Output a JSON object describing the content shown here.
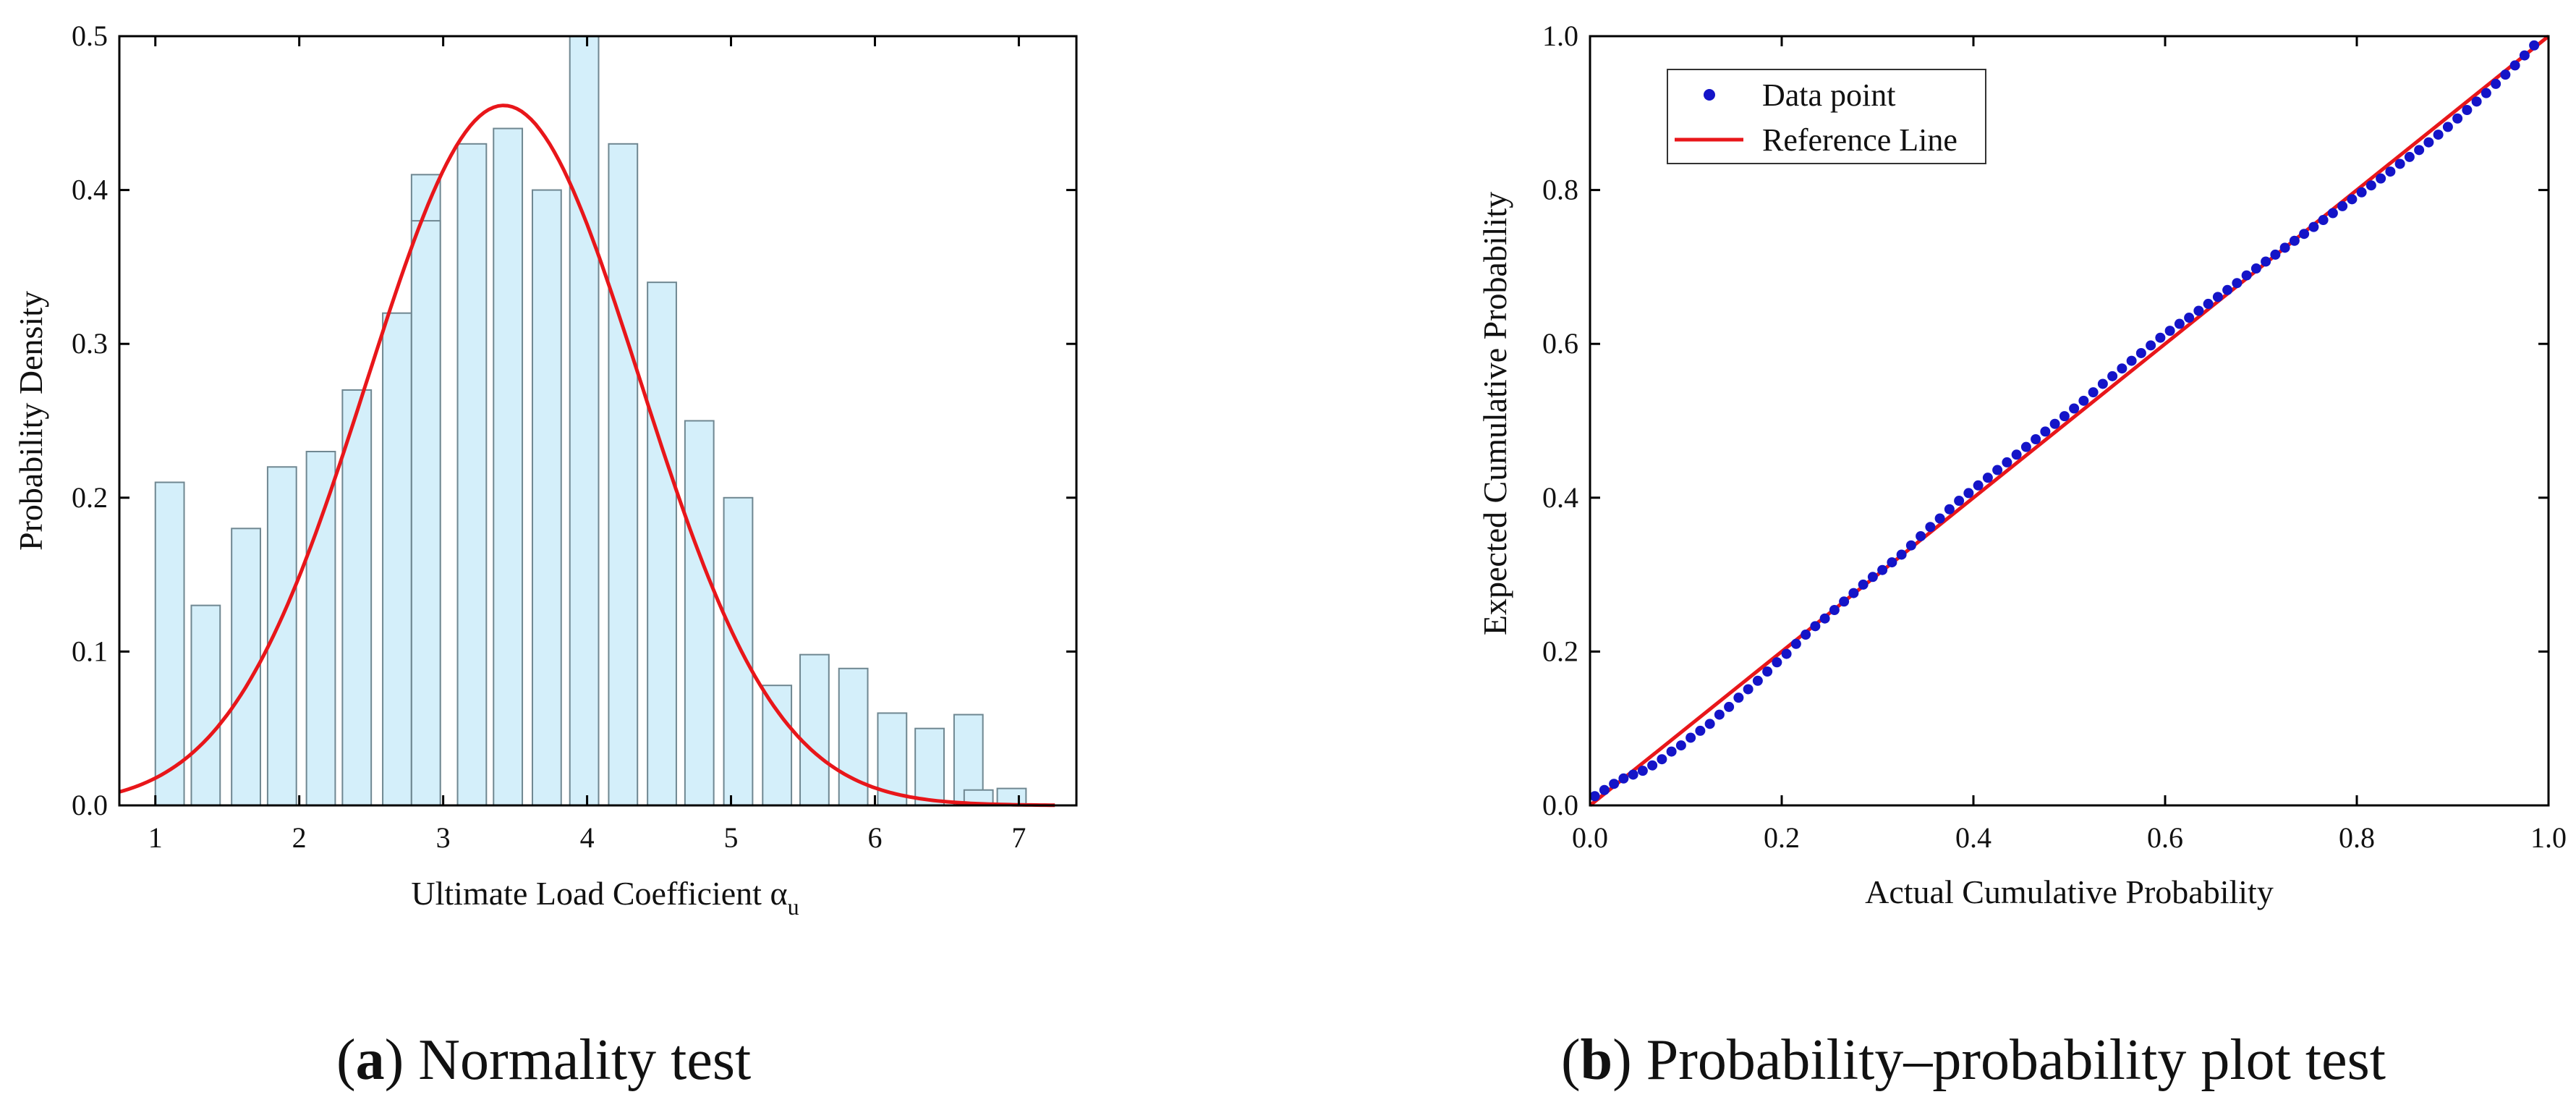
{
  "chart_data": [
    {
      "type": "bar",
      "panel_label": "a",
      "caption": "Normality test",
      "xlabel": "Ultimate Load Coefficient",
      "xlabel_symbol": "α",
      "xlabel_subscript": "u",
      "ylabel": "Probability Density",
      "xlim": [
        0.75,
        7.4
      ],
      "ylim": [
        0,
        0.5
      ],
      "xticks": [
        "1",
        "2",
        "3",
        "4",
        "5",
        "6",
        "7"
      ],
      "yticks": [
        "0.0",
        "0.1",
        "0.2",
        "0.3",
        "0.4",
        "0.5"
      ],
      "bar_color": "#d4effa",
      "bar_edge_color": "#6f8791",
      "bars": [
        {
          "x": 1.1,
          "width": 0.2,
          "value": 0.21
        },
        {
          "x": 1.35,
          "width": 0.2,
          "value": 0.13
        },
        {
          "x": 1.63,
          "width": 0.2,
          "value": 0.18
        },
        {
          "x": 1.88,
          "width": 0.2,
          "value": 0.22
        },
        {
          "x": 2.15,
          "width": 0.2,
          "value": 0.23
        },
        {
          "x": 2.4,
          "width": 0.2,
          "value": 0.27
        },
        {
          "x": 2.68,
          "width": 0.2,
          "value": 0.32
        },
        {
          "x": 2.88,
          "width": 0.2,
          "value": 0.41
        },
        {
          "x": 2.88,
          "width": 0.2,
          "value": 0.38
        },
        {
          "x": 3.2,
          "width": 0.2,
          "value": 0.43
        },
        {
          "x": 3.45,
          "width": 0.2,
          "value": 0.44
        },
        {
          "x": 3.72,
          "width": 0.2,
          "value": 0.4
        },
        {
          "x": 3.98,
          "width": 0.2,
          "value": 0.5
        },
        {
          "x": 4.25,
          "width": 0.2,
          "value": 0.43
        },
        {
          "x": 4.52,
          "width": 0.2,
          "value": 0.34
        },
        {
          "x": 4.78,
          "width": 0.2,
          "value": 0.25
        },
        {
          "x": 5.05,
          "width": 0.2,
          "value": 0.2
        },
        {
          "x": 5.32,
          "width": 0.2,
          "value": 0.078
        },
        {
          "x": 5.58,
          "width": 0.2,
          "value": 0.098
        },
        {
          "x": 5.85,
          "width": 0.2,
          "value": 0.089
        },
        {
          "x": 6.12,
          "width": 0.2,
          "value": 0.06
        },
        {
          "x": 6.38,
          "width": 0.2,
          "value": 0.05
        },
        {
          "x": 6.65,
          "width": 0.2,
          "value": 0.059
        },
        {
          "x": 6.72,
          "width": 0.2,
          "value": 0.01
        },
        {
          "x": 6.95,
          "width": 0.2,
          "value": 0.011
        }
      ],
      "fit_curve": {
        "type": "normal",
        "color": "#e8161a",
        "peak": 0.455,
        "mean": 3.42,
        "sd": 0.95,
        "x_range": [
          0.75,
          7.25
        ]
      }
    },
    {
      "type": "scatter",
      "panel_label": "b",
      "caption": "Probability–probability plot test",
      "xlabel": "Actual Cumulative Probability",
      "ylabel": "Expected Cumulative Probability",
      "xlim": [
        0,
        1
      ],
      "ylim": [
        0,
        1
      ],
      "xticks": [
        "0.0",
        "0.2",
        "0.4",
        "0.6",
        "0.8",
        "1.0"
      ],
      "yticks": [
        "0.0",
        "0.2",
        "0.4",
        "0.6",
        "0.8",
        "1.0"
      ],
      "legend": {
        "placement": "top-left",
        "entries": [
          "Data point",
          "Reference Line"
        ]
      },
      "series": [
        {
          "name": "Data point",
          "color": "#1414c8",
          "x": [
            0.005,
            0.015,
            0.025,
            0.035,
            0.045,
            0.055,
            0.065,
            0.075,
            0.085,
            0.095,
            0.105,
            0.115,
            0.125,
            0.135,
            0.145,
            0.155,
            0.165,
            0.175,
            0.185,
            0.195,
            0.205,
            0.215,
            0.225,
            0.235,
            0.245,
            0.255,
            0.265,
            0.275,
            0.285,
            0.295,
            0.305,
            0.315,
            0.325,
            0.335,
            0.345,
            0.355,
            0.365,
            0.375,
            0.385,
            0.395,
            0.405,
            0.415,
            0.425,
            0.435,
            0.445,
            0.455,
            0.465,
            0.475,
            0.485,
            0.495,
            0.505,
            0.515,
            0.525,
            0.535,
            0.545,
            0.555,
            0.565,
            0.575,
            0.585,
            0.595,
            0.605,
            0.615,
            0.625,
            0.635,
            0.645,
            0.655,
            0.665,
            0.675,
            0.685,
            0.695,
            0.705,
            0.715,
            0.725,
            0.735,
            0.745,
            0.755,
            0.765,
            0.775,
            0.785,
            0.795,
            0.805,
            0.815,
            0.825,
            0.835,
            0.845,
            0.855,
            0.865,
            0.875,
            0.885,
            0.895,
            0.905,
            0.915,
            0.925,
            0.935,
            0.945,
            0.955,
            0.965,
            0.975,
            0.985
          ],
          "y": [
            0.012,
            0.02,
            0.028,
            0.035,
            0.04,
            0.045,
            0.052,
            0.06,
            0.07,
            0.078,
            0.088,
            0.097,
            0.106,
            0.118,
            0.128,
            0.14,
            0.151,
            0.162,
            0.174,
            0.186,
            0.197,
            0.21,
            0.222,
            0.233,
            0.243,
            0.254,
            0.265,
            0.276,
            0.287,
            0.297,
            0.306,
            0.316,
            0.326,
            0.338,
            0.35,
            0.362,
            0.373,
            0.385,
            0.396,
            0.406,
            0.416,
            0.426,
            0.436,
            0.446,
            0.456,
            0.466,
            0.476,
            0.486,
            0.496,
            0.506,
            0.516,
            0.526,
            0.537,
            0.548,
            0.558,
            0.568,
            0.578,
            0.588,
            0.598,
            0.608,
            0.617,
            0.626,
            0.634,
            0.643,
            0.652,
            0.661,
            0.67,
            0.679,
            0.689,
            0.698,
            0.707,
            0.716,
            0.725,
            0.734,
            0.743,
            0.752,
            0.761,
            0.77,
            0.779,
            0.788,
            0.797,
            0.806,
            0.815,
            0.824,
            0.834,
            0.843,
            0.852,
            0.862,
            0.872,
            0.882,
            0.893,
            0.904,
            0.915,
            0.926,
            0.938,
            0.95,
            0.962,
            0.975,
            0.988
          ]
        },
        {
          "name": "Reference Line",
          "color": "#e8161a",
          "x": [
            0,
            1
          ],
          "y": [
            0,
            1
          ]
        }
      ]
    }
  ]
}
